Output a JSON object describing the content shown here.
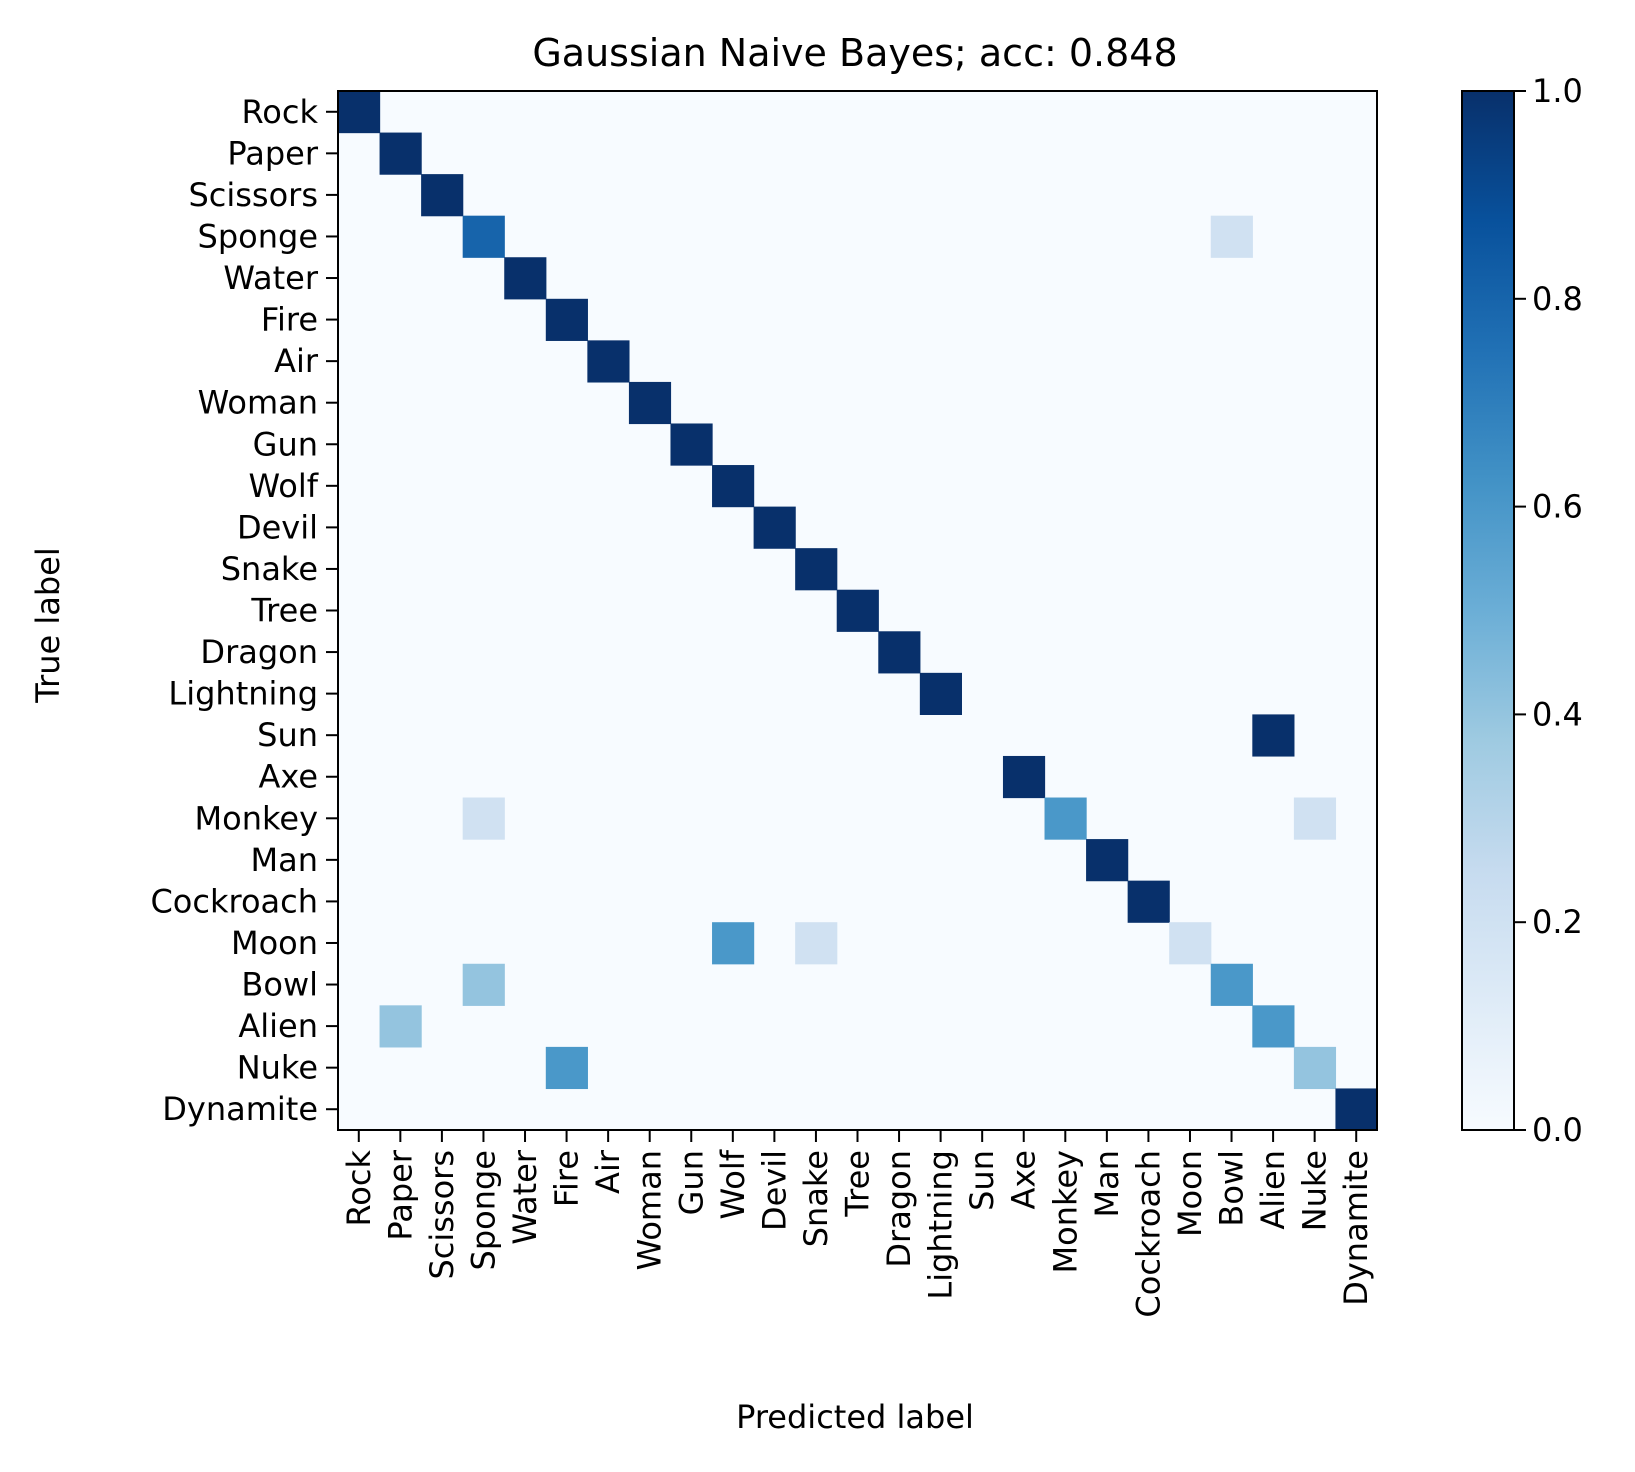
{
  "chart_data": {
    "type": "heatmap",
    "title": "Gaussian Naive Bayes; acc: 0.848",
    "xlabel": "Predicted label",
    "ylabel": "True label",
    "labels": [
      "Rock",
      "Paper",
      "Scissors",
      "Sponge",
      "Water",
      "Fire",
      "Air",
      "Woman",
      "Gun",
      "Wolf",
      "Devil",
      "Snake",
      "Tree",
      "Dragon",
      "Lightning",
      "Sun",
      "Axe",
      "Monkey",
      "Man",
      "Cockroach",
      "Moon",
      "Bowl",
      "Alien",
      "Nuke",
      "Dynamite"
    ],
    "values": [
      {
        "true": "Rock",
        "predicted": "Rock",
        "value": 1.0
      },
      {
        "true": "Paper",
        "predicted": "Paper",
        "value": 1.0
      },
      {
        "true": "Scissors",
        "predicted": "Scissors",
        "value": 1.0
      },
      {
        "true": "Sponge",
        "predicted": "Sponge",
        "value": 0.8
      },
      {
        "true": "Sponge",
        "predicted": "Bowl",
        "value": 0.2
      },
      {
        "true": "Water",
        "predicted": "Water",
        "value": 1.0
      },
      {
        "true": "Fire",
        "predicted": "Fire",
        "value": 1.0
      },
      {
        "true": "Air",
        "predicted": "Air",
        "value": 1.0
      },
      {
        "true": "Woman",
        "predicted": "Woman",
        "value": 1.0
      },
      {
        "true": "Gun",
        "predicted": "Gun",
        "value": 1.0
      },
      {
        "true": "Wolf",
        "predicted": "Wolf",
        "value": 1.0
      },
      {
        "true": "Devil",
        "predicted": "Devil",
        "value": 1.0
      },
      {
        "true": "Snake",
        "predicted": "Snake",
        "value": 1.0
      },
      {
        "true": "Tree",
        "predicted": "Tree",
        "value": 1.0
      },
      {
        "true": "Dragon",
        "predicted": "Dragon",
        "value": 1.0
      },
      {
        "true": "Lightning",
        "predicted": "Lightning",
        "value": 1.0
      },
      {
        "true": "Sun",
        "predicted": "Alien",
        "value": 1.0
      },
      {
        "true": "Axe",
        "predicted": "Axe",
        "value": 1.0
      },
      {
        "true": "Monkey",
        "predicted": "Sponge",
        "value": 0.2
      },
      {
        "true": "Monkey",
        "predicted": "Monkey",
        "value": 0.6
      },
      {
        "true": "Monkey",
        "predicted": "Nuke",
        "value": 0.2
      },
      {
        "true": "Man",
        "predicted": "Man",
        "value": 1.0
      },
      {
        "true": "Cockroach",
        "predicted": "Cockroach",
        "value": 1.0
      },
      {
        "true": "Moon",
        "predicted": "Wolf",
        "value": 0.6
      },
      {
        "true": "Moon",
        "predicted": "Snake",
        "value": 0.2
      },
      {
        "true": "Moon",
        "predicted": "Moon",
        "value": 0.2
      },
      {
        "true": "Bowl",
        "predicted": "Sponge",
        "value": 0.4
      },
      {
        "true": "Bowl",
        "predicted": "Bowl",
        "value": 0.6
      },
      {
        "true": "Alien",
        "predicted": "Paper",
        "value": 0.4
      },
      {
        "true": "Alien",
        "predicted": "Alien",
        "value": 0.6
      },
      {
        "true": "Nuke",
        "predicted": "Fire",
        "value": 0.6
      },
      {
        "true": "Nuke",
        "predicted": "Nuke",
        "value": 0.4
      },
      {
        "true": "Dynamite",
        "predicted": "Dynamite",
        "value": 1.0
      }
    ],
    "vmin": 0.0,
    "vmax": 1.0,
    "colormap": "Blues",
    "colorbar_ticks": [
      "0.0",
      "0.2",
      "0.4",
      "0.6",
      "0.8",
      "1.0"
    ],
    "grid": false
  }
}
